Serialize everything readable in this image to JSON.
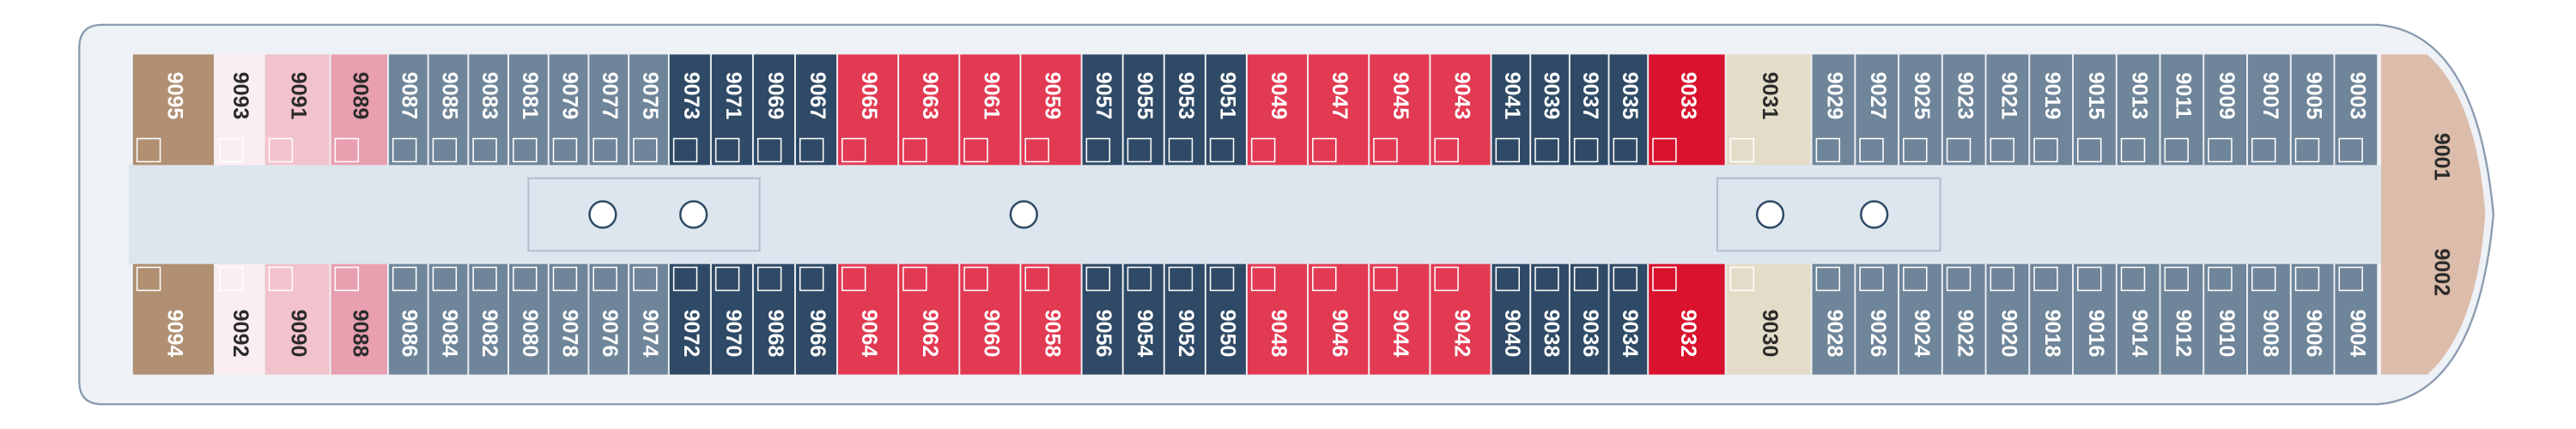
{
  "top_row": [
    {
      "color": "#b08f72",
      "cabins": [
        "9095"
      ]
    },
    {
      "color": "#fbeef1",
      "cabins": [
        "9093"
      ]
    },
    {
      "color": "#f3c3cd",
      "cabins": [
        "9091"
      ]
    },
    {
      "color": "#e8a0b0",
      "cabins": [
        "9089"
      ]
    },
    {
      "color": "#6f8599",
      "cabins": [
        "9087",
        "9085",
        "9083",
        "9081",
        "9079",
        "9077",
        "9075"
      ]
    },
    {
      "color": "#2f4a66",
      "cabins": [
        "9073",
        "9071",
        "9069",
        "9067"
      ]
    },
    {
      "color": "#e23a52",
      "cabins": [
        "9065",
        "9063",
        "9061",
        "9059"
      ]
    },
    {
      "color": "#2f4a66",
      "cabins": [
        "9057",
        "9055",
        "9053",
        "9051"
      ]
    },
    {
      "color": "#e23a52",
      "cabins": [
        "9049",
        "9047",
        "9045",
        "9043"
      ]
    },
    {
      "color": "#2f4a66",
      "cabins": [
        "9041",
        "9039",
        "9037",
        "9035"
      ]
    },
    {
      "color": "#d9132e",
      "cabins": [
        "9033"
      ]
    },
    {
      "color": "#e3dcc8",
      "cabins": [
        "9031"
      ]
    },
    {
      "color": "#6f8599",
      "cabins": [
        "9029",
        "9027",
        "9025",
        "9023",
        "9021",
        "9019",
        "9015",
        "9013",
        "9011",
        "9009",
        "9007",
        "9005",
        "9003"
      ]
    }
  ],
  "bottom_row": [
    {
      "color": "#b08f72",
      "cabins": [
        "9094"
      ]
    },
    {
      "color": "#fbeef1",
      "cabins": [
        "9092"
      ]
    },
    {
      "color": "#f3c3cd",
      "cabins": [
        "9090"
      ]
    },
    {
      "color": "#e8a0b0",
      "cabins": [
        "9088"
      ]
    },
    {
      "color": "#6f8599",
      "cabins": [
        "9086",
        "9084",
        "9082",
        "9080",
        "9078",
        "9076",
        "9074"
      ]
    },
    {
      "color": "#2f4a66",
      "cabins": [
        "9072",
        "9070",
        "9068",
        "9066"
      ]
    },
    {
      "color": "#e23a52",
      "cabins": [
        "9064",
        "9062",
        "9060",
        "9058"
      ]
    },
    {
      "color": "#2f4a66",
      "cabins": [
        "9056",
        "9054",
        "9052",
        "9050"
      ]
    },
    {
      "color": "#e23a52",
      "cabins": [
        "9048",
        "9046",
        "9044",
        "9042"
      ]
    },
    {
      "color": "#2f4a66",
      "cabins": [
        "9040",
        "9038",
        "9036",
        "9034"
      ]
    },
    {
      "color": "#d9132e",
      "cabins": [
        "9032"
      ]
    },
    {
      "color": "#e3dcc8",
      "cabins": [
        "9030"
      ]
    },
    {
      "color": "#6f8599",
      "cabins": [
        "9028",
        "9026",
        "9024",
        "9022",
        "9020",
        "9018",
        "9016",
        "9014",
        "9012",
        "9010",
        "9008",
        "9006",
        "9004"
      ]
    }
  ],
  "bow": {
    "color": "#dcbcaa",
    "cabins": [
      "9001",
      "9002"
    ]
  }
}
